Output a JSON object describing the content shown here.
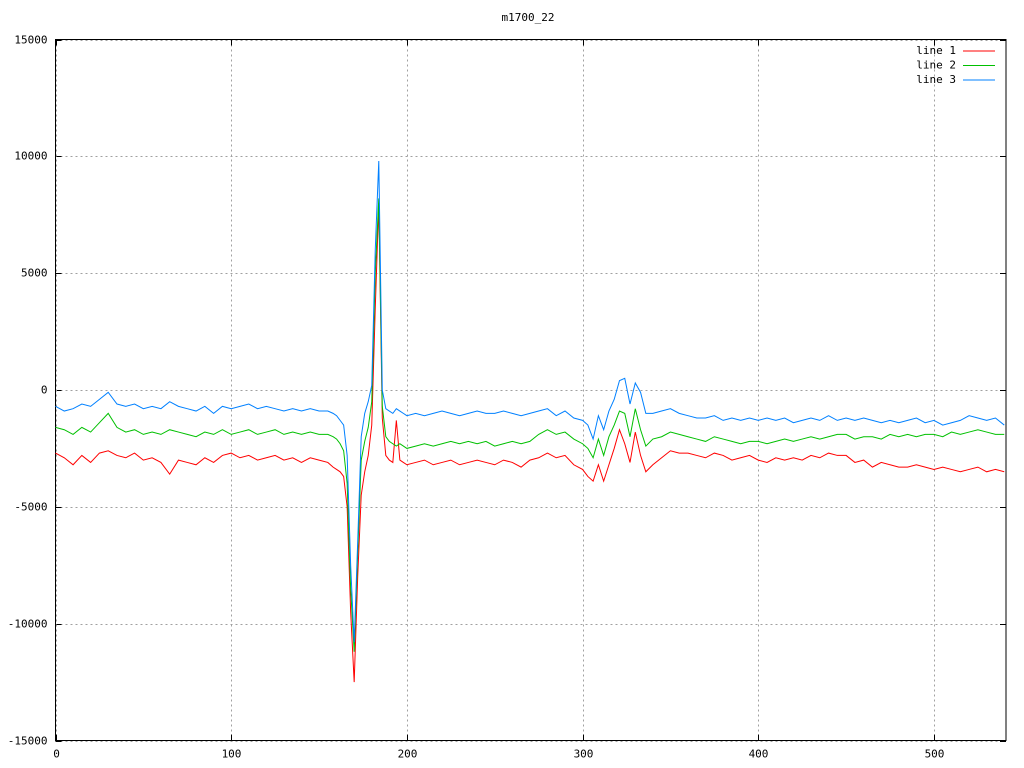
{
  "chart_data": {
    "type": "line",
    "title": "m1700_22",
    "x": [
      0,
      5,
      10,
      15,
      20,
      25,
      30,
      35,
      40,
      45,
      50,
      55,
      60,
      65,
      70,
      75,
      80,
      85,
      90,
      95,
      100,
      105,
      110,
      115,
      120,
      125,
      130,
      135,
      140,
      145,
      150,
      155,
      158,
      160,
      162,
      164,
      166,
      168,
      170,
      172,
      174,
      176,
      178,
      180,
      182,
      184,
      186,
      188,
      190,
      192,
      194,
      196,
      198,
      200,
      205,
      210,
      215,
      220,
      225,
      230,
      235,
      240,
      245,
      250,
      255,
      260,
      265,
      270,
      275,
      280,
      285,
      290,
      295,
      300,
      303,
      306,
      309,
      312,
      315,
      318,
      321,
      324,
      327,
      330,
      333,
      336,
      340,
      345,
      350,
      355,
      360,
      365,
      370,
      375,
      380,
      385,
      390,
      395,
      400,
      405,
      410,
      415,
      420,
      425,
      430,
      435,
      440,
      445,
      450,
      455,
      460,
      465,
      470,
      475,
      480,
      485,
      490,
      495,
      500,
      505,
      510,
      515,
      520,
      525,
      530,
      535,
      540
    ],
    "series": [
      {
        "name": "line 1",
        "color": "#ff0000",
        "values": [
          -2700,
          -2900,
          -3200,
          -2800,
          -3100,
          -2700,
          -2600,
          -2800,
          -2900,
          -2700,
          -3000,
          -2900,
          -3100,
          -3600,
          -3000,
          -3100,
          -3200,
          -2900,
          -3100,
          -2800,
          -2700,
          -2900,
          -2800,
          -3000,
          -2900,
          -2800,
          -3000,
          -2900,
          -3100,
          -2900,
          -3000,
          -3100,
          -3300,
          -3400,
          -3500,
          -3700,
          -5000,
          -9500,
          -12500,
          -8000,
          -4500,
          -3500,
          -2800,
          -1500,
          3500,
          8000,
          -1200,
          -2800,
          -3000,
          -3100,
          -1300,
          -3000,
          -3100,
          -3200,
          -3100,
          -3000,
          -3200,
          -3100,
          -3000,
          -3200,
          -3100,
          -3000,
          -3100,
          -3200,
          -3000,
          -3100,
          -3300,
          -3000,
          -2900,
          -2700,
          -2900,
          -2800,
          -3200,
          -3400,
          -3700,
          -3900,
          -3200,
          -3900,
          -3200,
          -2500,
          -1700,
          -2300,
          -3100,
          -1800,
          -2800,
          -3500,
          -3200,
          -2900,
          -2600,
          -2700,
          -2700,
          -2800,
          -2900,
          -2700,
          -2800,
          -3000,
          -2900,
          -2800,
          -3000,
          -3100,
          -2900,
          -3000,
          -2900,
          -3000,
          -2800,
          -2900,
          -2700,
          -2800,
          -2800,
          -3100,
          -3000,
          -3300,
          -3100,
          -3200,
          -3300,
          -3300,
          -3200,
          -3300,
          -3400,
          -3300,
          -3400,
          -3500,
          -3400,
          -3300,
          -3500,
          -3400,
          -3500
        ]
      },
      {
        "name": "line 2",
        "color": "#00c000",
        "values": [
          -1600,
          -1700,
          -1900,
          -1600,
          -1800,
          -1400,
          -1000,
          -1600,
          -1800,
          -1700,
          -1900,
          -1800,
          -1900,
          -1700,
          -1800,
          -1900,
          -2000,
          -1800,
          -1900,
          -1700,
          -1900,
          -1800,
          -1700,
          -1900,
          -1800,
          -1700,
          -1900,
          -1800,
          -1900,
          -1800,
          -1900,
          -1900,
          -2000,
          -2100,
          -2300,
          -2600,
          -4000,
          -8500,
          -11200,
          -7000,
          -3000,
          -2200,
          -1600,
          -500,
          5000,
          8200,
          -700,
          -2000,
          -2200,
          -2300,
          -2400,
          -2300,
          -2400,
          -2500,
          -2400,
          -2300,
          -2400,
          -2300,
          -2200,
          -2300,
          -2200,
          -2300,
          -2200,
          -2400,
          -2300,
          -2200,
          -2300,
          -2200,
          -1900,
          -1700,
          -1900,
          -1800,
          -2100,
          -2300,
          -2500,
          -2900,
          -2100,
          -2800,
          -2000,
          -1500,
          -900,
          -1000,
          -2000,
          -800,
          -1700,
          -2400,
          -2100,
          -2000,
          -1800,
          -1900,
          -2000,
          -2100,
          -2200,
          -2000,
          -2100,
          -2200,
          -2300,
          -2200,
          -2200,
          -2300,
          -2200,
          -2100,
          -2200,
          -2100,
          -2000,
          -2100,
          -2000,
          -1900,
          -1900,
          -2100,
          -2000,
          -2000,
          -2100,
          -1900,
          -2000,
          -1900,
          -2000,
          -1900,
          -1900,
          -2000,
          -1800,
          -1900,
          -1800,
          -1700,
          -1800,
          -1900,
          -1900
        ]
      },
      {
        "name": "line 3",
        "color": "#0080ff",
        "values": [
          -700,
          -900,
          -800,
          -600,
          -700,
          -400,
          -100,
          -600,
          -700,
          -600,
          -800,
          -700,
          -800,
          -500,
          -700,
          -800,
          -900,
          -700,
          -1000,
          -700,
          -800,
          -700,
          -600,
          -800,
          -700,
          -800,
          -900,
          -800,
          -900,
          -800,
          -900,
          -900,
          -1000,
          -1100,
          -1300,
          -1500,
          -2800,
          -7500,
          -10800,
          -6500,
          -2000,
          -1000,
          -500,
          200,
          6000,
          9800,
          0,
          -800,
          -900,
          -1000,
          -800,
          -900,
          -1000,
          -1100,
          -1000,
          -1100,
          -1000,
          -900,
          -1000,
          -1100,
          -1000,
          -900,
          -1000,
          -1000,
          -900,
          -1000,
          -1100,
          -1000,
          -900,
          -800,
          -1100,
          -900,
          -1200,
          -1300,
          -1500,
          -2100,
          -1100,
          -1700,
          -900,
          -400,
          400,
          500,
          -600,
          300,
          -100,
          -1000,
          -1000,
          -900,
          -800,
          -1000,
          -1100,
          -1200,
          -1200,
          -1100,
          -1300,
          -1200,
          -1300,
          -1200,
          -1300,
          -1200,
          -1300,
          -1200,
          -1400,
          -1300,
          -1200,
          -1300,
          -1100,
          -1300,
          -1200,
          -1300,
          -1200,
          -1300,
          -1400,
          -1300,
          -1400,
          -1300,
          -1200,
          -1400,
          -1300,
          -1500,
          -1400,
          -1300,
          -1100,
          -1200,
          -1300,
          -1200,
          -1500
        ]
      }
    ],
    "xlim": [
      0,
      541
    ],
    "ylim": [
      -15000,
      15000
    ],
    "xticks": [
      0,
      100,
      200,
      300,
      400,
      500
    ],
    "yticks": [
      -15000,
      -10000,
      -5000,
      0,
      5000,
      10000,
      15000
    ],
    "grid": true,
    "legend": "top-right"
  }
}
